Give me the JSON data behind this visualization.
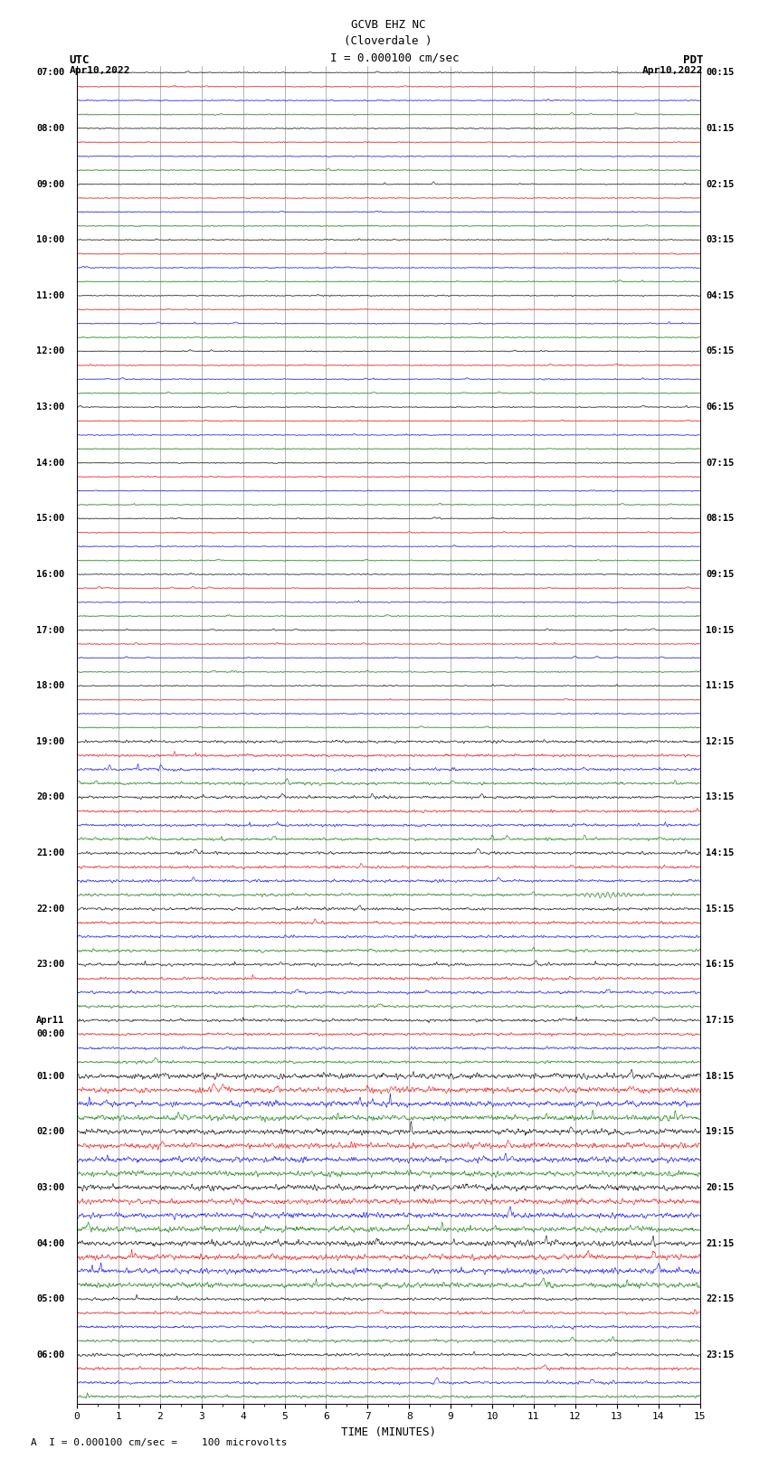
{
  "title_line1": "GCVB EHZ NC",
  "title_line2": "(Cloverdale )",
  "title_line3": "I = 0.000100 cm/sec",
  "label_utc": "UTC",
  "label_pdt": "PDT",
  "date_left": "Apr10,2022",
  "date_right": "Apr10,2022",
  "xlabel": "TIME (MINUTES)",
  "footer": "A  I = 0.000100 cm/sec =    100 microvolts",
  "xlim": [
    0,
    15
  ],
  "xticks": [
    0,
    1,
    2,
    3,
    4,
    5,
    6,
    7,
    8,
    9,
    10,
    11,
    12,
    13,
    14,
    15
  ],
  "bg_color": "#ffffff",
  "line_colors": [
    "black",
    "red",
    "blue",
    "green"
  ],
  "grid_color": "#999999",
  "left_times_utc": [
    "07:00",
    "",
    "",
    "",
    "08:00",
    "",
    "",
    "",
    "09:00",
    "",
    "",
    "",
    "10:00",
    "",
    "",
    "",
    "11:00",
    "",
    "",
    "",
    "12:00",
    "",
    "",
    "",
    "13:00",
    "",
    "",
    "",
    "14:00",
    "",
    "",
    "",
    "15:00",
    "",
    "",
    "",
    "16:00",
    "",
    "",
    "",
    "17:00",
    "",
    "",
    "",
    "18:00",
    "",
    "",
    "",
    "19:00",
    "",
    "",
    "",
    "20:00",
    "",
    "",
    "",
    "21:00",
    "",
    "",
    "",
    "22:00",
    "",
    "",
    "",
    "23:00",
    "",
    "",
    "",
    "Apr11",
    "00:00",
    "",
    "",
    "01:00",
    "",
    "",
    "",
    "02:00",
    "",
    "",
    "",
    "03:00",
    "",
    "",
    "",
    "04:00",
    "",
    "",
    "",
    "05:00",
    "",
    "",
    "",
    "06:00",
    "",
    "",
    ""
  ],
  "right_times_pdt": [
    "00:15",
    "",
    "",
    "",
    "01:15",
    "",
    "",
    "",
    "02:15",
    "",
    "",
    "",
    "03:15",
    "",
    "",
    "",
    "04:15",
    "",
    "",
    "",
    "05:15",
    "",
    "",
    "",
    "06:15",
    "",
    "",
    "",
    "07:15",
    "",
    "",
    "",
    "08:15",
    "",
    "",
    "",
    "09:15",
    "",
    "",
    "",
    "10:15",
    "",
    "",
    "",
    "11:15",
    "",
    "",
    "",
    "12:15",
    "",
    "",
    "",
    "13:15",
    "",
    "",
    "",
    "14:15",
    "",
    "",
    "",
    "15:15",
    "",
    "",
    "",
    "16:15",
    "",
    "",
    "",
    "17:15",
    "",
    "",
    "",
    "18:15",
    "",
    "",
    "",
    "19:15",
    "",
    "",
    "",
    "20:15",
    "",
    "",
    "",
    "21:15",
    "",
    "",
    "",
    "22:15",
    "",
    "",
    "",
    "23:15",
    "",
    "",
    ""
  ],
  "n_rows": 96,
  "noise_base": 0.03,
  "noise_medium_rows": [
    48,
    49,
    50,
    51,
    52,
    53,
    54,
    55,
    56,
    57,
    58,
    59,
    60,
    61,
    62,
    63,
    64,
    65,
    66,
    67,
    68,
    69,
    70,
    71,
    72,
    73,
    74,
    75,
    76,
    77,
    78,
    79,
    80,
    81,
    82,
    83,
    84,
    85,
    86,
    87,
    88,
    89,
    90,
    91,
    92,
    93,
    94,
    95
  ],
  "noise_medium_factor": 2.5,
  "noise_high_rows": [
    72,
    73,
    74,
    75,
    76,
    77,
    78,
    79,
    80,
    81,
    82,
    83,
    84,
    85,
    86,
    87
  ],
  "noise_high_factor": 5.0,
  "event_row_green": 59,
  "event_col_green": 12.7,
  "event_amplitude": 0.18
}
